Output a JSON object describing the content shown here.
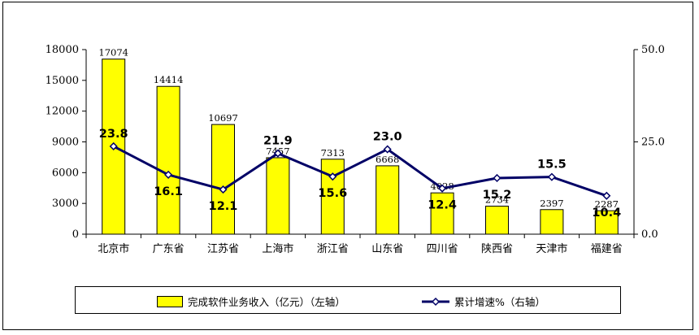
{
  "chart_data": {
    "type": "bar",
    "categories": [
      "北京市",
      "广东省",
      "江苏省",
      "上海市",
      "浙江省",
      "山东省",
      "四川省",
      "陕西省",
      "天津市",
      "福建省"
    ],
    "series": [
      {
        "name": "完成软件业务收入（亿元）（左轴）",
        "type": "bar",
        "axis": "left",
        "color": "#ffff00",
        "values": [
          17074,
          14414,
          10697,
          7457,
          7313,
          6668,
          4028,
          2734,
          2397,
          2287
        ],
        "labels": [
          "17074",
          "14414",
          "10697",
          "7457",
          "7313",
          "6668",
          "4028",
          "2734",
          "2397",
          "2287"
        ]
      },
      {
        "name": "累计增速%（右轴）",
        "type": "line",
        "axis": "right",
        "color": "#000066",
        "values": [
          23.8,
          16.1,
          12.1,
          21.9,
          15.6,
          23.0,
          12.4,
          15.2,
          15.5,
          10.4
        ],
        "labels": [
          "23.8",
          "16.1",
          "12.1",
          "21.9",
          "15.6",
          "23.0",
          "12.4",
          "15.2",
          "15.5",
          "10.4"
        ]
      }
    ],
    "y_left": {
      "range": [
        0,
        18000
      ],
      "ticks": [
        0,
        3000,
        6000,
        9000,
        12000,
        15000,
        18000
      ],
      "tick_labels": [
        "0",
        "3000",
        "6000",
        "9000",
        "12000",
        "15000",
        "18000"
      ]
    },
    "y_right": {
      "range": [
        0,
        50
      ],
      "ticks": [
        0,
        25,
        50
      ],
      "tick_labels": [
        "0.0",
        "25.0",
        "50.0"
      ]
    },
    "grid": false,
    "legend_position": "bottom"
  }
}
